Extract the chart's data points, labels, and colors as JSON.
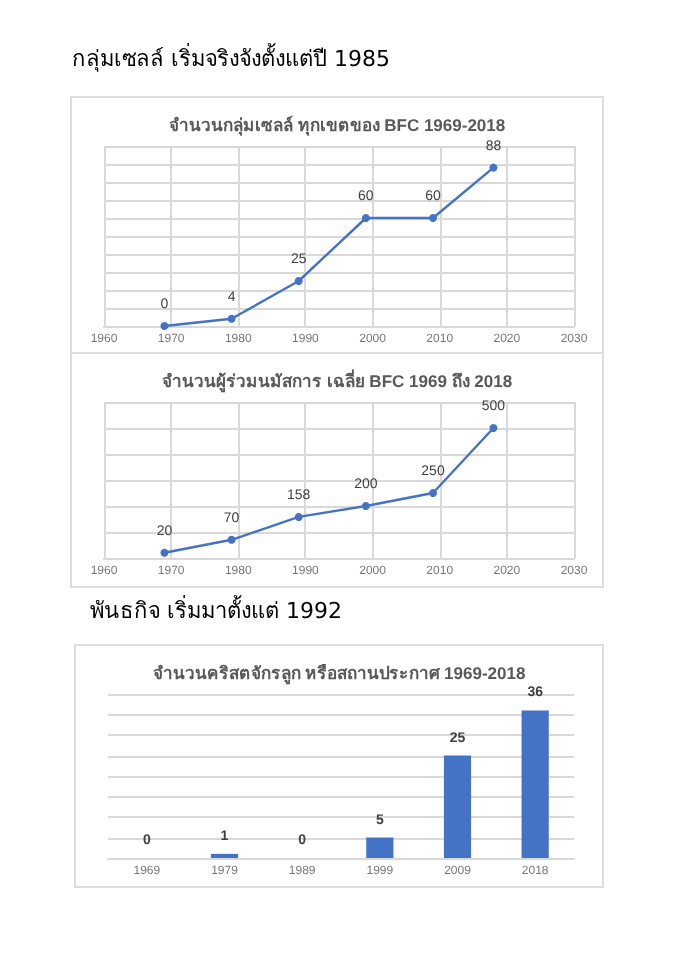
{
  "chart_data": [
    {
      "type": "line",
      "title": "จำนวนกลุ่มเซลล์ ทุกเขตของ BFC 1969-2018",
      "annotations": [
        "กลุ่มเซลล์ เริ่มจริงจังตั้งแต่ปี  1985"
      ],
      "x": [
        1969,
        1979,
        1989,
        1999,
        2009,
        2018
      ],
      "series": [
        {
          "color": "#4472c4",
          "values": [
            0,
            4,
            25,
            60,
            60,
            88
          ]
        }
      ],
      "xlim": [
        1960,
        2030
      ],
      "xticks": [
        1960,
        1970,
        1980,
        1990,
        2000,
        2010,
        2020,
        2030
      ],
      "ylim": [
        0,
        100
      ],
      "yticks": [
        {
          "value": 0,
          "label": null
        },
        {
          "value": 10,
          "label": null
        },
        {
          "value": 20,
          "label": null
        },
        {
          "value": 30,
          "label": null
        },
        {
          "value": 40,
          "label": null
        },
        {
          "value": 50,
          "label": null
        },
        {
          "value": 60,
          "label": null
        },
        {
          "value": 70,
          "label": null
        },
        {
          "value": 80,
          "label": null
        },
        {
          "value": 90,
          "label": null
        },
        {
          "value": 100,
          "label": null
        }
      ],
      "tick_labels": "x",
      "grid": true,
      "marker": "circle",
      "data_labels": true
    },
    {
      "type": "line",
      "title": "จำนวนผู้ร่วมนมัสการ เฉลี่ย BFC 1969 ถึง 2018",
      "x": [
        1969,
        1979,
        1989,
        1999,
        2009,
        2018
      ],
      "series": [
        {
          "color": "#4472c4",
          "values": [
            20,
            70,
            158,
            200,
            250,
            500
          ]
        }
      ],
      "xlim": [
        1960,
        2030
      ],
      "xticks": [
        1960,
        1970,
        1980,
        1990,
        2000,
        2010,
        2020,
        2030
      ],
      "ylim": [
        0,
        600
      ],
      "yticks": [
        {
          "value": 0,
          "label": null
        },
        {
          "value": 100,
          "label": null
        },
        {
          "value": 200,
          "label": null
        },
        {
          "value": 300,
          "label": null
        },
        {
          "value": 400,
          "label": null
        },
        {
          "value": 500,
          "label": null
        },
        {
          "value": 600,
          "label": null
        }
      ],
      "tick_labels": "x",
      "grid": true,
      "marker": "circle",
      "data_labels": true
    },
    {
      "type": "bar",
      "title": "จำนวนคริสตจักรลูก หรือสถานประกาศ 1969-2018",
      "annotations": [
        "พันธกิจ  เริ่มมาตั้งแต่  1992"
      ],
      "categories": [
        "1969",
        "1979",
        "1989",
        "1999",
        "2009",
        "2018"
      ],
      "values": [
        0,
        1,
        0,
        5,
        25,
        36
      ],
      "color": "#4472c4",
      "ylim": [
        0,
        40
      ],
      "yticks": [
        {
          "value": 0,
          "label": null
        },
        {
          "value": 5,
          "label": null
        },
        {
          "value": 10,
          "label": null
        },
        {
          "value": 15,
          "label": null
        },
        {
          "value": 20,
          "label": null
        },
        {
          "value": 25,
          "label": null
        },
        {
          "value": 30,
          "label": null
        },
        {
          "value": 35,
          "label": null
        },
        {
          "value": 40,
          "label": null
        }
      ],
      "tick_labels": "x",
      "grid": "y",
      "data_labels": true
    }
  ]
}
